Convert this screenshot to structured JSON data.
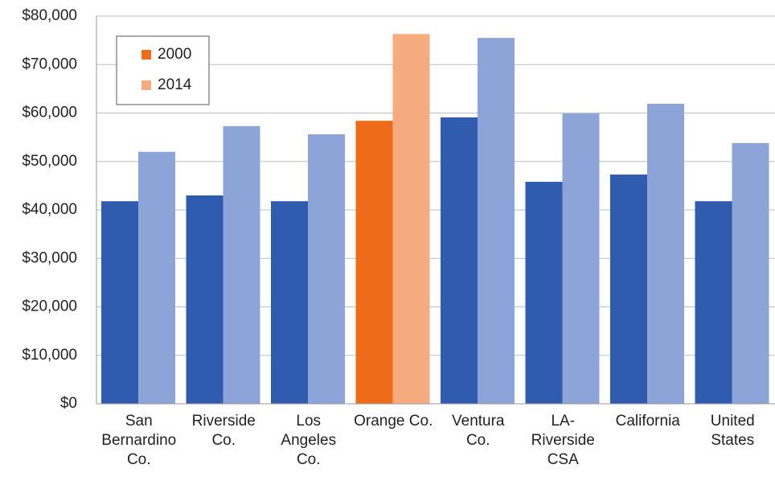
{
  "chart_data": {
    "type": "bar",
    "categories": [
      "San Bernardino Co.",
      "Riverside Co.",
      "Los Angeles Co.",
      "Orange Co.",
      "Ventura Co.",
      "LA-Riverside CSA",
      "California",
      "United States"
    ],
    "series": [
      {
        "name": "2000",
        "color": "#ee6b1a",
        "values": [
          41800,
          43000,
          41800,
          58400,
          59100,
          45800,
          47300,
          41800
        ],
        "colors": [
          "#2f5cae",
          "#2f5cae",
          "#2f5cae",
          "#ee6b1a",
          "#2f5cae",
          "#2f5cae",
          "#2f5cae",
          "#2f5cae"
        ]
      },
      {
        "name": "2014",
        "color": "#f5ab7d",
        "values": [
          52000,
          57300,
          55600,
          76300,
          75500,
          59900,
          61900,
          53800
        ],
        "colors": [
          "#8da4d9",
          "#8da4d9",
          "#8da4d9",
          "#f5ab7d",
          "#8da4d9",
          "#8da4d9",
          "#8da4d9",
          "#8da4d9"
        ]
      }
    ],
    "ylim": [
      0,
      80000
    ],
    "yticks": [
      {
        "value": 0,
        "label": "$0"
      },
      {
        "value": 10000,
        "label": "$10,000"
      },
      {
        "value": 20000,
        "label": "$20,000"
      },
      {
        "value": 30000,
        "label": "$30,000"
      },
      {
        "value": 40000,
        "label": "$40,000"
      },
      {
        "value": 50000,
        "label": "$50,000"
      },
      {
        "value": 60000,
        "label": "$60,000"
      },
      {
        "value": 70000,
        "label": "$70,000"
      },
      {
        "value": 80000,
        "label": "$80,000"
      }
    ],
    "grid": true,
    "legend": "top-left"
  }
}
